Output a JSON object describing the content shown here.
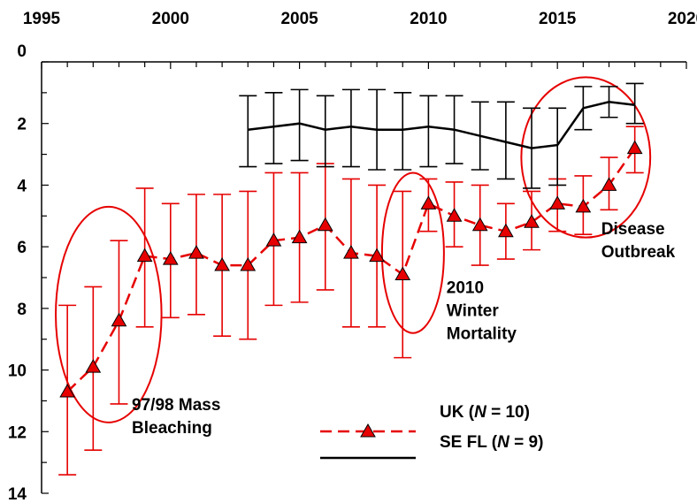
{
  "chart_data": {
    "type": "line",
    "title": "",
    "xlabel": "",
    "ylabel": "",
    "xlim": [
      1995,
      2020
    ],
    "ylim": [
      0,
      14
    ],
    "y_inverted": true,
    "x_axis_position": "top",
    "x_ticks": [
      1995,
      2000,
      2005,
      2010,
      2015,
      2020
    ],
    "y_ticks": [
      0,
      2,
      4,
      6,
      8,
      10,
      12,
      14
    ],
    "grid": false,
    "legend_position": "bottom-center",
    "series": [
      {
        "label_prefix": "UK (",
        "label_italic": "N",
        "label_suffix": " = 10)",
        "color": "#e60000",
        "line_style": "dashed",
        "marker": "triangle",
        "points": [
          {
            "x": 1996,
            "y": 10.7,
            "low": 7.9,
            "high": 13.4
          },
          {
            "x": 1997,
            "y": 9.9,
            "low": 7.3,
            "high": 12.6
          },
          {
            "x": 1998,
            "y": 8.4,
            "low": 5.8,
            "high": 11.1
          },
          {
            "x": 1999,
            "y": 6.3,
            "low": 4.1,
            "high": 8.6
          },
          {
            "x": 2000,
            "y": 6.4,
            "low": 4.6,
            "high": 8.3
          },
          {
            "x": 2001,
            "y": 6.2,
            "low": 4.3,
            "high": 8.2
          },
          {
            "x": 2002,
            "y": 6.6,
            "low": 4.3,
            "high": 8.9
          },
          {
            "x": 2003,
            "y": 6.6,
            "low": 4.2,
            "high": 9.0
          },
          {
            "x": 2004,
            "y": 5.8,
            "low": 3.6,
            "high": 7.9
          },
          {
            "x": 2005,
            "y": 5.7,
            "low": 3.6,
            "high": 7.8
          },
          {
            "x": 2006,
            "y": 5.3,
            "low": 3.3,
            "high": 7.4
          },
          {
            "x": 2007,
            "y": 6.2,
            "low": 3.8,
            "high": 8.6
          },
          {
            "x": 2008,
            "y": 6.3,
            "low": 4.0,
            "high": 8.6
          },
          {
            "x": 2009,
            "y": 6.9,
            "low": 4.2,
            "high": 9.6
          },
          {
            "x": 2010,
            "y": 4.6,
            "low": 3.8,
            "high": 5.5
          },
          {
            "x": 2011,
            "y": 5.0,
            "low": 3.9,
            "high": 6.0
          },
          {
            "x": 2012,
            "y": 5.3,
            "low": 4.0,
            "high": 6.6
          },
          {
            "x": 2013,
            "y": 5.5,
            "low": 4.6,
            "high": 6.4
          },
          {
            "x": 2014,
            "y": 5.2,
            "low": 4.2,
            "high": 6.1
          },
          {
            "x": 2015,
            "y": 4.6,
            "low": 3.8,
            "high": 5.5
          },
          {
            "x": 2016,
            "y": 4.7,
            "low": 3.7,
            "high": 5.6
          },
          {
            "x": 2017,
            "y": 4.0,
            "low": 3.1,
            "high": 4.8
          },
          {
            "x": 2018,
            "y": 2.8,
            "low": 2.1,
            "high": 3.6
          }
        ]
      },
      {
        "label_prefix": "SE FL (",
        "label_italic": "N",
        "label_suffix": " = 9)",
        "color": "#000000",
        "line_style": "solid",
        "marker": "none",
        "points": [
          {
            "x": 2003,
            "y": 2.2,
            "low": 1.1,
            "high": 3.4
          },
          {
            "x": 2004,
            "y": 2.1,
            "low": 1.0,
            "high": 3.3
          },
          {
            "x": 2005,
            "y": 2.0,
            "low": 0.9,
            "high": 3.2
          },
          {
            "x": 2006,
            "y": 2.2,
            "low": 1.1,
            "high": 3.4
          },
          {
            "x": 2007,
            "y": 2.1,
            "low": 0.9,
            "high": 3.4
          },
          {
            "x": 2008,
            "y": 2.2,
            "low": 0.9,
            "high": 3.5
          },
          {
            "x": 2009,
            "y": 2.2,
            "low": 1.0,
            "high": 3.5
          },
          {
            "x": 2010,
            "y": 2.1,
            "low": 1.1,
            "high": 3.4
          },
          {
            "x": 2011,
            "y": 2.2,
            "low": 1.1,
            "high": 3.3
          },
          {
            "x": 2012,
            "y": 2.4,
            "low": 1.3,
            "high": 3.5
          },
          {
            "x": 2013,
            "y": 2.6,
            "low": 1.3,
            "high": 3.8
          },
          {
            "x": 2014,
            "y": 2.8,
            "low": 1.5,
            "high": 4.1
          },
          {
            "x": 2015,
            "y": 2.7,
            "low": 1.5,
            "high": 4.0
          },
          {
            "x": 2016,
            "y": 1.5,
            "low": 0.8,
            "high": 2.2
          },
          {
            "x": 2017,
            "y": 1.3,
            "low": 0.8,
            "high": 1.8
          },
          {
            "x": 2018,
            "y": 1.4,
            "low": 0.7,
            "high": 2.0
          }
        ]
      }
    ],
    "annotations": [
      {
        "lines": [
          "97/98 Mass",
          "Bleaching"
        ],
        "ellipse_center": [
          1997.6,
          8.2
        ],
        "ellipse_radii": [
          2.05,
          3.5
        ],
        "text_anchor": [
          1998.5,
          11.3
        ]
      },
      {
        "lines": [
          "2010",
          "Winter",
          "Mortality"
        ],
        "ellipse_center": [
          2009.4,
          6.2
        ],
        "ellipse_radii": [
          1.2,
          2.6
        ],
        "text_anchor": [
          2010.7,
          7.5
        ]
      },
      {
        "lines": [
          "Disease",
          "Outbreak"
        ],
        "ellipse_center": [
          2016.1,
          3.1
        ],
        "ellipse_radii": [
          2.5,
          2.6
        ],
        "text_anchor": [
          2016.7,
          5.6
        ]
      }
    ],
    "annotation_color": "#e60000"
  }
}
